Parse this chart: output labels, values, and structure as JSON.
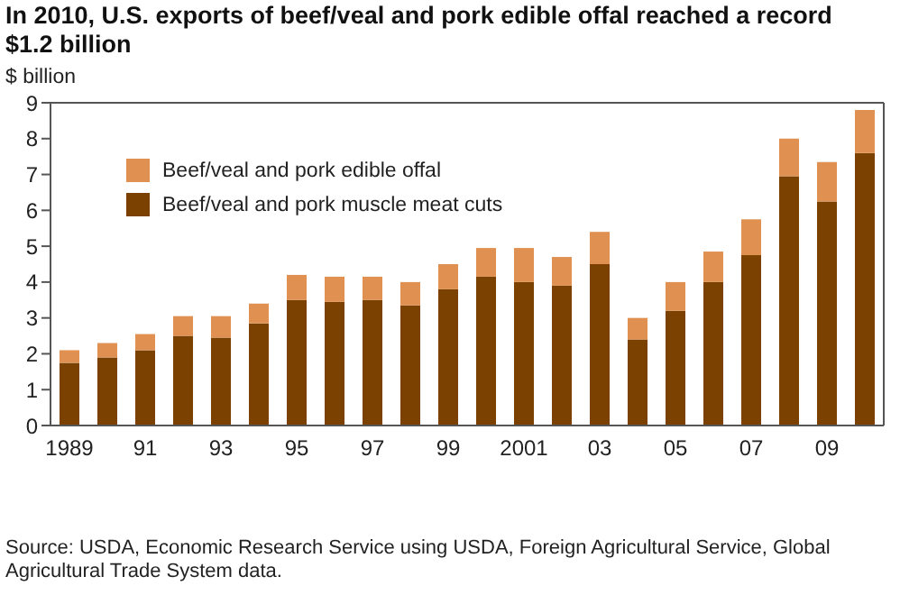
{
  "chart_data": {
    "type": "bar",
    "stacked": true,
    "title": "In 2010, U.S. exports of beef/veal and pork edible offal reached a record $1.2 billion",
    "ylabel": "$ billion",
    "categories": [
      "1989",
      null,
      "91",
      null,
      "93",
      null,
      "95",
      null,
      "97",
      null,
      "99",
      null,
      "2001",
      null,
      "03",
      null,
      "05",
      null,
      "07",
      null,
      "09",
      null
    ],
    "series": [
      {
        "name": "Beef/veal and pork muscle meat cuts",
        "color": "#7a4100",
        "values": [
          1.75,
          1.9,
          2.1,
          2.5,
          2.45,
          2.85,
          3.5,
          3.45,
          3.5,
          3.35,
          3.8,
          4.15,
          4.0,
          3.9,
          4.5,
          2.4,
          3.2,
          4.0,
          4.75,
          6.95,
          6.25,
          7.6
        ]
      },
      {
        "name": "Beef/veal and pork edible offal",
        "color": "#e09050",
        "values": [
          0.35,
          0.4,
          0.45,
          0.55,
          0.6,
          0.55,
          0.7,
          0.7,
          0.65,
          0.65,
          0.7,
          0.8,
          0.95,
          0.8,
          0.9,
          0.6,
          0.8,
          0.85,
          1.0,
          1.05,
          1.1,
          1.2
        ]
      }
    ],
    "ylim": [
      0,
      9
    ],
    "yticks": [
      0,
      1,
      2,
      3,
      4,
      5,
      6,
      7,
      8,
      9
    ],
    "grid": false,
    "legend": "top left",
    "annotations": [
      "Source: USDA, Economic Research Service using USDA, Foreign Agricultural Service, Global Agricultural Trade System data."
    ]
  }
}
